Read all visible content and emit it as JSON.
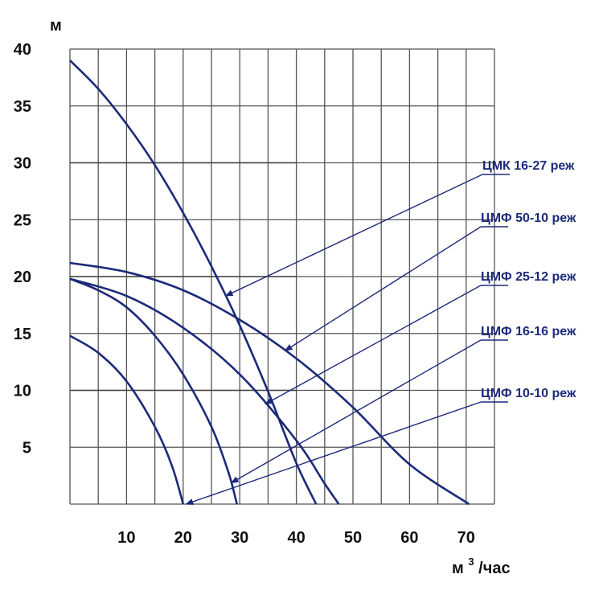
{
  "chart_data": {
    "type": "line",
    "title": "",
    "xlabel": "м",
    "xlabel_sup": "3",
    "xlabel_suffix": "/час",
    "ylabel": "м",
    "xlim": [
      0,
      75
    ],
    "ylim": [
      0,
      40
    ],
    "x_ticks": [
      10,
      20,
      30,
      40,
      50,
      60,
      70
    ],
    "y_ticks": [
      40,
      35,
      30,
      25,
      20,
      15,
      10,
      5
    ],
    "grid": true,
    "curve_color": "#1d2a7a",
    "series": [
      {
        "name": "ЦМК 16-27 реж",
        "points": [
          [
            0,
            39
          ],
          [
            5,
            36.5
          ],
          [
            10,
            33.4
          ],
          [
            15,
            29.8
          ],
          [
            20,
            25.6
          ],
          [
            25,
            20.9
          ],
          [
            30,
            15.7
          ],
          [
            35,
            9.9
          ],
          [
            40,
            3.6
          ],
          [
            43.5,
            0
          ]
        ]
      },
      {
        "name": "ЦМФ 50-10 реж",
        "points": [
          [
            0,
            21.2
          ],
          [
            10,
            20.4
          ],
          [
            20,
            18.8
          ],
          [
            30,
            16.2
          ],
          [
            40,
            12.8
          ],
          [
            50,
            8.5
          ],
          [
            60,
            3.5
          ],
          [
            70.5,
            0
          ]
        ]
      },
      {
        "name": "ЦМФ 25-12 реж",
        "points": [
          [
            0,
            19.8
          ],
          [
            10,
            18.3
          ],
          [
            20,
            15.5
          ],
          [
            30,
            11.4
          ],
          [
            40,
            5.6
          ],
          [
            45,
            1.8
          ],
          [
            47.5,
            0
          ]
        ]
      },
      {
        "name": "ЦМФ 16-16 реж",
        "points": [
          [
            0,
            19.8
          ],
          [
            5,
            18.8
          ],
          [
            10,
            17.3
          ],
          [
            15,
            14.8
          ],
          [
            20,
            11.4
          ],
          [
            25,
            6.8
          ],
          [
            28,
            2.8
          ],
          [
            29.5,
            0
          ]
        ]
      },
      {
        "name": "ЦМФ 10-10 реж",
        "points": [
          [
            0,
            14.8
          ],
          [
            5,
            13.3
          ],
          [
            10,
            10.8
          ],
          [
            15,
            6.8
          ],
          [
            18,
            3.4
          ],
          [
            20,
            0
          ]
        ]
      }
    ]
  }
}
